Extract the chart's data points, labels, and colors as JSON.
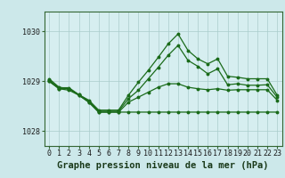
{
  "bg_color": "#cce8ea",
  "plot_bg_color": "#d6eef0",
  "grid_color": "#aacccc",
  "line_color": "#1a6b1a",
  "title": "Graphe pression niveau de la mer (hPa)",
  "xlim": [
    -0.5,
    23.5
  ],
  "ylim": [
    1027.7,
    1030.4
  ],
  "yticks": [
    1028,
    1029,
    1030
  ],
  "xticks": [
    0,
    1,
    2,
    3,
    4,
    5,
    6,
    7,
    8,
    9,
    10,
    11,
    12,
    13,
    14,
    15,
    16,
    17,
    18,
    19,
    20,
    21,
    22,
    23
  ],
  "series": [
    [
      1029.0,
      1028.85,
      1028.82,
      1028.72,
      1028.58,
      1028.38,
      1028.38,
      1028.38,
      1028.38,
      1028.38,
      1028.38,
      1028.38,
      1028.38,
      1028.38,
      1028.38,
      1028.38,
      1028.38,
      1028.38,
      1028.38,
      1028.38,
      1028.38,
      1028.38,
      1028.38,
      1028.38
    ],
    [
      1029.0,
      1028.85,
      1028.85,
      1028.72,
      1028.58,
      1028.38,
      1028.38,
      1028.38,
      1028.58,
      1028.68,
      1028.78,
      1028.88,
      1028.95,
      1028.95,
      1028.88,
      1028.85,
      1028.83,
      1028.85,
      1028.82,
      1028.83,
      1028.83,
      1028.83,
      1028.83,
      1028.62
    ],
    [
      1029.02,
      1028.87,
      1028.87,
      1028.73,
      1028.6,
      1028.4,
      1028.4,
      1028.4,
      1028.65,
      1028.82,
      1029.05,
      1029.28,
      1029.52,
      1029.72,
      1029.42,
      1029.3,
      1029.15,
      1029.25,
      1028.93,
      1028.95,
      1028.92,
      1028.92,
      1028.93,
      1028.68
    ],
    [
      1029.05,
      1028.88,
      1028.85,
      1028.73,
      1028.62,
      1028.42,
      1028.42,
      1028.42,
      1028.72,
      1028.98,
      1029.22,
      1029.48,
      1029.75,
      1029.95,
      1029.62,
      1029.45,
      1029.35,
      1029.45,
      1029.1,
      1029.08,
      1029.05,
      1029.05,
      1029.05,
      1028.72
    ]
  ],
  "title_fontsize": 7.5,
  "tick_fontsize": 6,
  "tick_color": "#1a1a1a",
  "spine_color": "#336633"
}
